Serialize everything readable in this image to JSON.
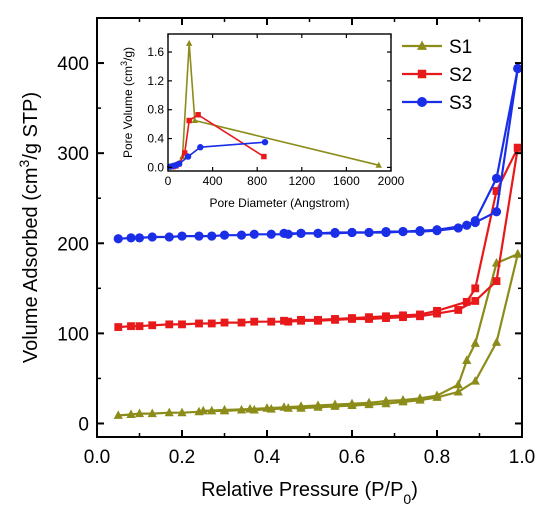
{
  "chart_data": [
    {
      "type": "line",
      "title": "",
      "xlabel": "Relative Pressure (P/P",
      "xlabel_sub": "0",
      "xlabel_end": ")",
      "ylabel": "Volume Adsorbed (cm",
      "ylabel_sup": "3",
      "ylabel_end": "/g STP)",
      "xlim": [
        0.0,
        1.0
      ],
      "ylim": [
        -15,
        450
      ],
      "xticks": [
        0.0,
        0.2,
        0.4,
        0.6,
        0.8,
        1.0
      ],
      "xtick_labels": [
        "0.0",
        "0.2",
        "0.4",
        "0.6",
        "0.8",
        "1.0"
      ],
      "yticks": [
        0,
        100,
        200,
        300,
        400
      ],
      "ytick_labels": [
        "0",
        "100",
        "200",
        "300",
        "400"
      ],
      "grid": false,
      "legend_position": "top-right",
      "series": [
        {
          "name": "S1",
          "color": "#8c8c1a",
          "marker": "triangle",
          "branches": [
            [
              [
                0.05,
                9
              ],
              [
                0.08,
                10
              ],
              [
                0.1,
                11
              ],
              [
                0.13,
                11
              ],
              [
                0.17,
                12
              ],
              [
                0.2,
                12
              ],
              [
                0.24,
                13
              ],
              [
                0.27,
                14
              ],
              [
                0.3,
                14
              ],
              [
                0.34,
                15
              ],
              [
                0.37,
                15
              ],
              [
                0.41,
                16
              ],
              [
                0.45,
                17
              ],
              [
                0.48,
                17
              ],
              [
                0.52,
                18
              ],
              [
                0.56,
                19
              ],
              [
                0.6,
                20
              ],
              [
                0.64,
                21
              ],
              [
                0.68,
                22
              ],
              [
                0.72,
                24
              ],
              [
                0.76,
                26
              ],
              [
                0.8,
                29
              ],
              [
                0.85,
                35
              ],
              [
                0.89,
                47
              ],
              [
                0.94,
                90
              ],
              [
                0.99,
                188
              ]
            ],
            [
              [
                0.99,
                188
              ],
              [
                0.94,
                178
              ],
              [
                0.89,
                89
              ],
              [
                0.87,
                70
              ],
              [
                0.85,
                43
              ],
              [
                0.8,
                31
              ],
              [
                0.76,
                28
              ],
              [
                0.72,
                26
              ],
              [
                0.68,
                25
              ],
              [
                0.64,
                23
              ],
              [
                0.6,
                22
              ],
              [
                0.56,
                21
              ],
              [
                0.52,
                20
              ],
              [
                0.48,
                19
              ],
              [
                0.44,
                18
              ],
              [
                0.4,
                17
              ],
              [
                0.36,
                16
              ],
              [
                0.3,
                15
              ],
              [
                0.25,
                14
              ]
            ]
          ]
        },
        {
          "name": "S2",
          "color": "#e8191a",
          "marker": "square",
          "branches": [
            [
              [
                0.05,
                107
              ],
              [
                0.08,
                108
              ],
              [
                0.1,
                108
              ],
              [
                0.13,
                109
              ],
              [
                0.17,
                110
              ],
              [
                0.2,
                110
              ],
              [
                0.24,
                111
              ],
              [
                0.27,
                111
              ],
              [
                0.3,
                112
              ],
              [
                0.34,
                112
              ],
              [
                0.37,
                113
              ],
              [
                0.41,
                113
              ],
              [
                0.45,
                113
              ],
              [
                0.48,
                114
              ],
              [
                0.52,
                114
              ],
              [
                0.56,
                115
              ],
              [
                0.6,
                116
              ],
              [
                0.64,
                116
              ],
              [
                0.68,
                117
              ],
              [
                0.72,
                118
              ],
              [
                0.76,
                119
              ],
              [
                0.8,
                122
              ],
              [
                0.85,
                126
              ],
              [
                0.89,
                136
              ],
              [
                0.94,
                158
              ],
              [
                0.99,
                306
              ]
            ],
            [
              [
                0.99,
                306
              ],
              [
                0.94,
                258
              ],
              [
                0.89,
                150
              ],
              [
                0.87,
                135
              ],
              [
                0.8,
                125
              ],
              [
                0.76,
                121
              ],
              [
                0.72,
                120
              ],
              [
                0.68,
                119
              ],
              [
                0.64,
                118
              ],
              [
                0.6,
                117
              ],
              [
                0.56,
                116
              ],
              [
                0.52,
                115
              ],
              [
                0.48,
                115
              ],
              [
                0.44,
                114
              ]
            ]
          ]
        },
        {
          "name": "S3",
          "color": "#1a2ee8",
          "marker": "circle",
          "branches": [
            [
              [
                0.05,
                205
              ],
              [
                0.08,
                206
              ],
              [
                0.1,
                206
              ],
              [
                0.13,
                207
              ],
              [
                0.17,
                207
              ],
              [
                0.2,
                208
              ],
              [
                0.24,
                208
              ],
              [
                0.27,
                208
              ],
              [
                0.3,
                209
              ],
              [
                0.34,
                209
              ],
              [
                0.37,
                210
              ],
              [
                0.41,
                210
              ],
              [
                0.45,
                210
              ],
              [
                0.48,
                211
              ],
              [
                0.52,
                211
              ],
              [
                0.56,
                211
              ],
              [
                0.6,
                212
              ],
              [
                0.64,
                212
              ],
              [
                0.68,
                212
              ],
              [
                0.72,
                213
              ],
              [
                0.76,
                213
              ],
              [
                0.8,
                214
              ],
              [
                0.85,
                217
              ],
              [
                0.89,
                223
              ],
              [
                0.94,
                235
              ],
              [
                0.99,
                394
              ]
            ],
            [
              [
                0.99,
                394
              ],
              [
                0.94,
                272
              ],
              [
                0.89,
                225
              ],
              [
                0.87,
                220
              ],
              [
                0.8,
                215
              ],
              [
                0.76,
                214
              ],
              [
                0.72,
                213
              ],
              [
                0.68,
                213
              ],
              [
                0.64,
                212
              ],
              [
                0.6,
                212
              ],
              [
                0.56,
                212
              ],
              [
                0.52,
                211
              ],
              [
                0.48,
                211
              ],
              [
                0.44,
                211
              ]
            ]
          ]
        }
      ]
    },
    {
      "type": "line",
      "title": "",
      "xlabel": "Pore Diameter (Angstrom)",
      "ylabel": "Pore Volume (cm",
      "ylabel_sup": "3",
      "ylabel_end": "/g)",
      "xlim": [
        0,
        2000
      ],
      "ylim": [
        -0.05,
        1.85
      ],
      "xticks": [
        0,
        400,
        800,
        1200,
        1600,
        2000
      ],
      "xtick_labels": [
        "0",
        "400",
        "800",
        "1200",
        "1600",
        "2000"
      ],
      "yticks": [
        0.0,
        0.4,
        0.8,
        1.2,
        1.6
      ],
      "ytick_labels": [
        "0.0",
        "0.4",
        "0.8",
        "1.2",
        "1.6"
      ],
      "grid": false,
      "series": [
        {
          "name": "S1",
          "color": "#8c8c1a",
          "marker": "triangle",
          "points": [
            [
              20,
              0.01
            ],
            [
              45,
              0.02
            ],
            [
              70,
              0.03
            ],
            [
              100,
              0.06
            ],
            [
              130,
              0.15
            ],
            [
              190,
              1.72
            ],
            [
              240,
              0.65
            ],
            [
              1890,
              0.03
            ]
          ]
        },
        {
          "name": "S2",
          "color": "#e8191a",
          "marker": "square",
          "points": [
            [
              20,
              0.01
            ],
            [
              45,
              0.01
            ],
            [
              70,
              0.02
            ],
            [
              100,
              0.05
            ],
            [
              150,
              0.2
            ],
            [
              190,
              0.65
            ],
            [
              270,
              0.73
            ],
            [
              860,
              0.15
            ]
          ]
        },
        {
          "name": "S3",
          "color": "#1a2ee8",
          "marker": "circle",
          "points": [
            [
              20,
              0.01
            ],
            [
              45,
              0.02
            ],
            [
              70,
              0.03
            ],
            [
              100,
              0.05
            ],
            [
              180,
              0.15
            ],
            [
              290,
              0.28
            ],
            [
              870,
              0.35
            ]
          ]
        }
      ]
    }
  ]
}
